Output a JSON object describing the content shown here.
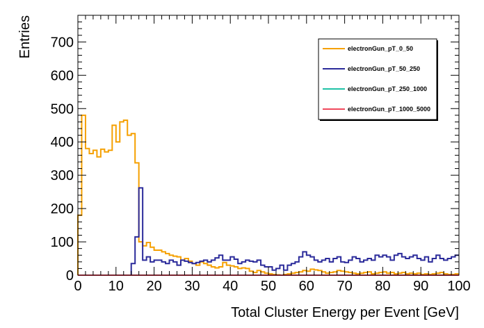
{
  "chart_data": {
    "type": "line",
    "title": "",
    "xlabel": "Total Cluster Energy per Event [GeV]",
    "ylabel": "Entries",
    "xlim": [
      0,
      100
    ],
    "ylim": [
      0,
      780
    ],
    "grid": false,
    "legend_placement": "top-right",
    "x_ticks": [
      0,
      10,
      20,
      30,
      40,
      50,
      60,
      70,
      80,
      90,
      100
    ],
    "y_ticks": [
      0,
      100,
      200,
      300,
      400,
      500,
      600,
      700
    ],
    "x_tick_labels": [
      "0",
      "10",
      "20",
      "30",
      "40",
      "50",
      "60",
      "70",
      "80",
      "90",
      "100"
    ],
    "y_tick_labels": [
      "0",
      "100",
      "200",
      "300",
      "400",
      "500",
      "600",
      "700"
    ],
    "bin_width": 1,
    "series": [
      {
        "name": "electronGun_pT_0_50",
        "color": "#f5a000",
        "values": [
          180,
          480,
          380,
          365,
          375,
          355,
          378,
          370,
          375,
          450,
          400,
          460,
          465,
          420,
          425,
          337,
          100,
          88,
          98,
          84,
          75,
          75,
          70,
          65,
          60,
          57,
          55,
          45,
          50,
          42,
          35,
          30,
          40,
          35,
          30,
          25,
          22,
          25,
          38,
          30,
          28,
          25,
          20,
          22,
          20,
          12,
          8,
          14,
          10,
          6,
          4,
          2,
          1,
          0,
          2,
          4,
          6,
          8,
          10,
          14,
          12,
          18,
          16,
          14,
          10,
          6,
          8,
          10,
          14,
          12,
          10,
          8,
          6,
          4,
          6,
          8,
          10,
          4,
          6,
          8,
          10,
          6,
          8,
          4,
          6,
          8,
          4,
          6,
          4,
          6,
          2,
          4,
          2,
          4,
          6,
          8,
          4,
          2,
          2,
          4
        ]
      },
      {
        "name": "electronGun_pT_50_250",
        "color": "#2a2a9a",
        "values": [
          0,
          0,
          0,
          0,
          0,
          0,
          0,
          0,
          0,
          0,
          0,
          0,
          0,
          0,
          35,
          115,
          262,
          45,
          55,
          40,
          45,
          45,
          40,
          35,
          45,
          40,
          30,
          45,
          42,
          38,
          35,
          38,
          42,
          45,
          40,
          45,
          52,
          60,
          45,
          45,
          55,
          48,
          35,
          40,
          45,
          42,
          40,
          45,
          30,
          25,
          25,
          15,
          20,
          30,
          15,
          30,
          35,
          40,
          55,
          70,
          60,
          55,
          45,
          40,
          45,
          50,
          40,
          50,
          55,
          40,
          38,
          45,
          55,
          50,
          40,
          45,
          50,
          45,
          60,
          55,
          60,
          55,
          45,
          60,
          65,
          55,
          50,
          55,
          60,
          50,
          45,
          55,
          40,
          50,
          60,
          50,
          45,
          50,
          55,
          60
        ]
      },
      {
        "name": "electronGun_pT_250_1000",
        "color": "#1fc1a6",
        "values": [
          0,
          0,
          0,
          0,
          0,
          0,
          0,
          0,
          0,
          0,
          0,
          0,
          0,
          0,
          0,
          0,
          0,
          0,
          0,
          0,
          0,
          0,
          0,
          0,
          0,
          0,
          0,
          0,
          0,
          0,
          0,
          0,
          0,
          0,
          0,
          0,
          0,
          0,
          0,
          0,
          0,
          0,
          0,
          0,
          0,
          0,
          0,
          0,
          0,
          0,
          0,
          0,
          0,
          0,
          0,
          0,
          0,
          0,
          0,
          0,
          0,
          0,
          0,
          0,
          0,
          0,
          0,
          0,
          0,
          0,
          0,
          0,
          0,
          0,
          0,
          0,
          0,
          0,
          0,
          0,
          0,
          0,
          0,
          0,
          0,
          0,
          0,
          0,
          0,
          0,
          0,
          0,
          0,
          0,
          0,
          0,
          0,
          0,
          0,
          0
        ]
      },
      {
        "name": "electronGun_pT_1000_5000",
        "color": "#f0485c",
        "values": [
          0,
          0,
          0,
          0,
          0,
          0,
          0,
          0,
          0,
          0,
          0,
          0,
          0,
          0,
          0,
          0,
          0,
          0,
          0,
          0,
          0,
          0,
          0,
          0,
          0,
          0,
          0,
          0,
          0,
          0,
          0,
          0,
          0,
          0,
          0,
          0,
          0,
          0,
          0,
          0,
          0,
          0,
          0,
          0,
          0,
          0,
          0,
          0,
          0,
          0,
          0,
          0,
          0,
          0,
          0,
          0,
          0,
          0,
          0,
          0,
          0,
          0,
          0,
          0,
          0,
          0,
          0,
          0,
          0,
          0,
          0,
          0,
          0,
          0,
          0,
          0,
          0,
          0,
          0,
          0,
          0,
          0,
          0,
          0,
          0,
          0,
          0,
          0,
          0,
          0,
          0,
          0,
          0,
          0,
          0,
          0,
          0,
          0,
          0,
          0
        ]
      }
    ]
  }
}
